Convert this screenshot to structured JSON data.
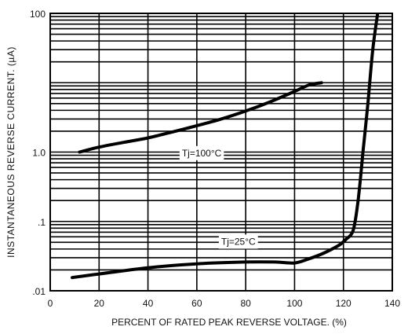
{
  "chart_data": {
    "type": "line",
    "title": "",
    "xlabel": "PERCENT OF RATED PEAK REVERSE VOLTAGE. (%)",
    "ylabel": "INSTANTANEOUS REVERSE CURRENT. (µA)",
    "xlim": [
      0,
      140
    ],
    "ylim": [
      0.01,
      100
    ],
    "yscale": "log",
    "grid": true,
    "x_ticks": [
      {
        "value": 0,
        "label": "0"
      },
      {
        "value": 20,
        "label": "20"
      },
      {
        "value": 40,
        "label": "40"
      },
      {
        "value": 60,
        "label": "60"
      },
      {
        "value": 80,
        "label": "80"
      },
      {
        "value": 100,
        "label": "100"
      },
      {
        "value": 120,
        "label": "120"
      },
      {
        "value": 140,
        "label": "140"
      }
    ],
    "y_ticks": [
      {
        "value": 0.01,
        "label": ".01"
      },
      {
        "value": 0.1,
        "label": ".1"
      },
      {
        "value": 1,
        "label": "1.0"
      },
      {
        "value": 100,
        "label": "100"
      }
    ],
    "y_grid": [
      0.01,
      0.02,
      0.03,
      0.04,
      0.05,
      0.06,
      0.07,
      0.08,
      0.09,
      0.1,
      0.2,
      0.3,
      0.4,
      0.5,
      0.6,
      0.7,
      0.8,
      0.9,
      1,
      2,
      3,
      4,
      5,
      6,
      7,
      8,
      9,
      10,
      20,
      30,
      40,
      50,
      60,
      70,
      80,
      90,
      100
    ],
    "series": [
      {
        "name": "Tj=100°C",
        "label_at": {
          "x": 62,
          "y": 0.87
        },
        "x": [
          12,
          20,
          30,
          40,
          50,
          60,
          70,
          80,
          90,
          100,
          106,
          111
        ],
        "y": [
          1.0,
          1.18,
          1.38,
          1.6,
          1.95,
          2.4,
          3.0,
          3.9,
          5.3,
          7.5,
          9.3,
          10.0
        ]
      },
      {
        "name": "Tj=25°C",
        "label_at": {
          "x": 77,
          "y": 0.046
        },
        "x": [
          9,
          20,
          40,
          60,
          80,
          92,
          100,
          106,
          112,
          118,
          121,
          124,
          126,
          128,
          130,
          132,
          134
        ],
        "y": [
          0.0155,
          0.0175,
          0.0215,
          0.0245,
          0.026,
          0.026,
          0.0252,
          0.029,
          0.035,
          0.045,
          0.055,
          0.075,
          0.2,
          1.0,
          5.0,
          30,
          100
        ]
      }
    ]
  }
}
